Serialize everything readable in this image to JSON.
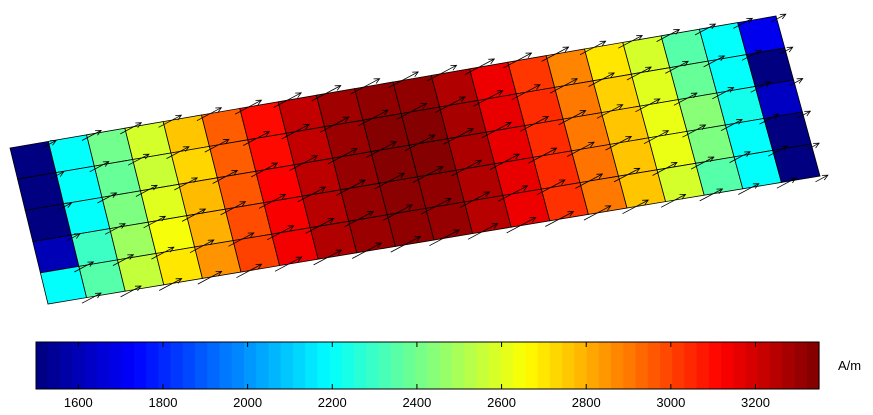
{
  "chart_data": {
    "type": "heatmap",
    "description_of_field": "magnetic field magnitude on a tilted rectangular mesh with field-direction arrows",
    "grid": {
      "rows": 5,
      "cols": 20
    },
    "values": [
      [
        1500,
        2200,
        2400,
        2580,
        2760,
        2950,
        3100,
        3230,
        3290,
        3320,
        3320,
        3260,
        3150,
        3020,
        2880,
        2700,
        2580,
        2350,
        2200,
        1700
      ],
      [
        1500,
        2200,
        2380,
        2560,
        2730,
        2950,
        3100,
        3230,
        3300,
        3340,
        3340,
        3280,
        3160,
        3040,
        2900,
        2740,
        2600,
        2380,
        2200,
        1500
      ],
      [
        1500,
        2200,
        2420,
        2600,
        2780,
        2960,
        3120,
        3240,
        3310,
        3340,
        3340,
        3270,
        3160,
        3040,
        2900,
        2760,
        2620,
        2440,
        2230,
        1620
      ],
      [
        1600,
        2300,
        2480,
        2640,
        2800,
        2980,
        3130,
        3250,
        3310,
        3330,
        3320,
        3260,
        3160,
        3040,
        2910,
        2760,
        2620,
        2420,
        2200,
        1500
      ],
      [
        2200,
        2350,
        2550,
        2700,
        2850,
        3000,
        3140,
        3260,
        3300,
        3320,
        3310,
        3250,
        3150,
        3030,
        2900,
        2760,
        2580,
        2350,
        2200,
        1500
      ]
    ],
    "colorbar": {
      "colormap": "jet",
      "range": [
        1500,
        3350
      ],
      "ticks": [
        "1600",
        "1800",
        "2000",
        "2200",
        "2400",
        "2600",
        "2800",
        "3000",
        "3200"
      ],
      "tick_values": [
        1600,
        1800,
        2000,
        2200,
        2400,
        2600,
        2800,
        3000,
        3200
      ],
      "unit": "A/m"
    },
    "arrows": true
  }
}
